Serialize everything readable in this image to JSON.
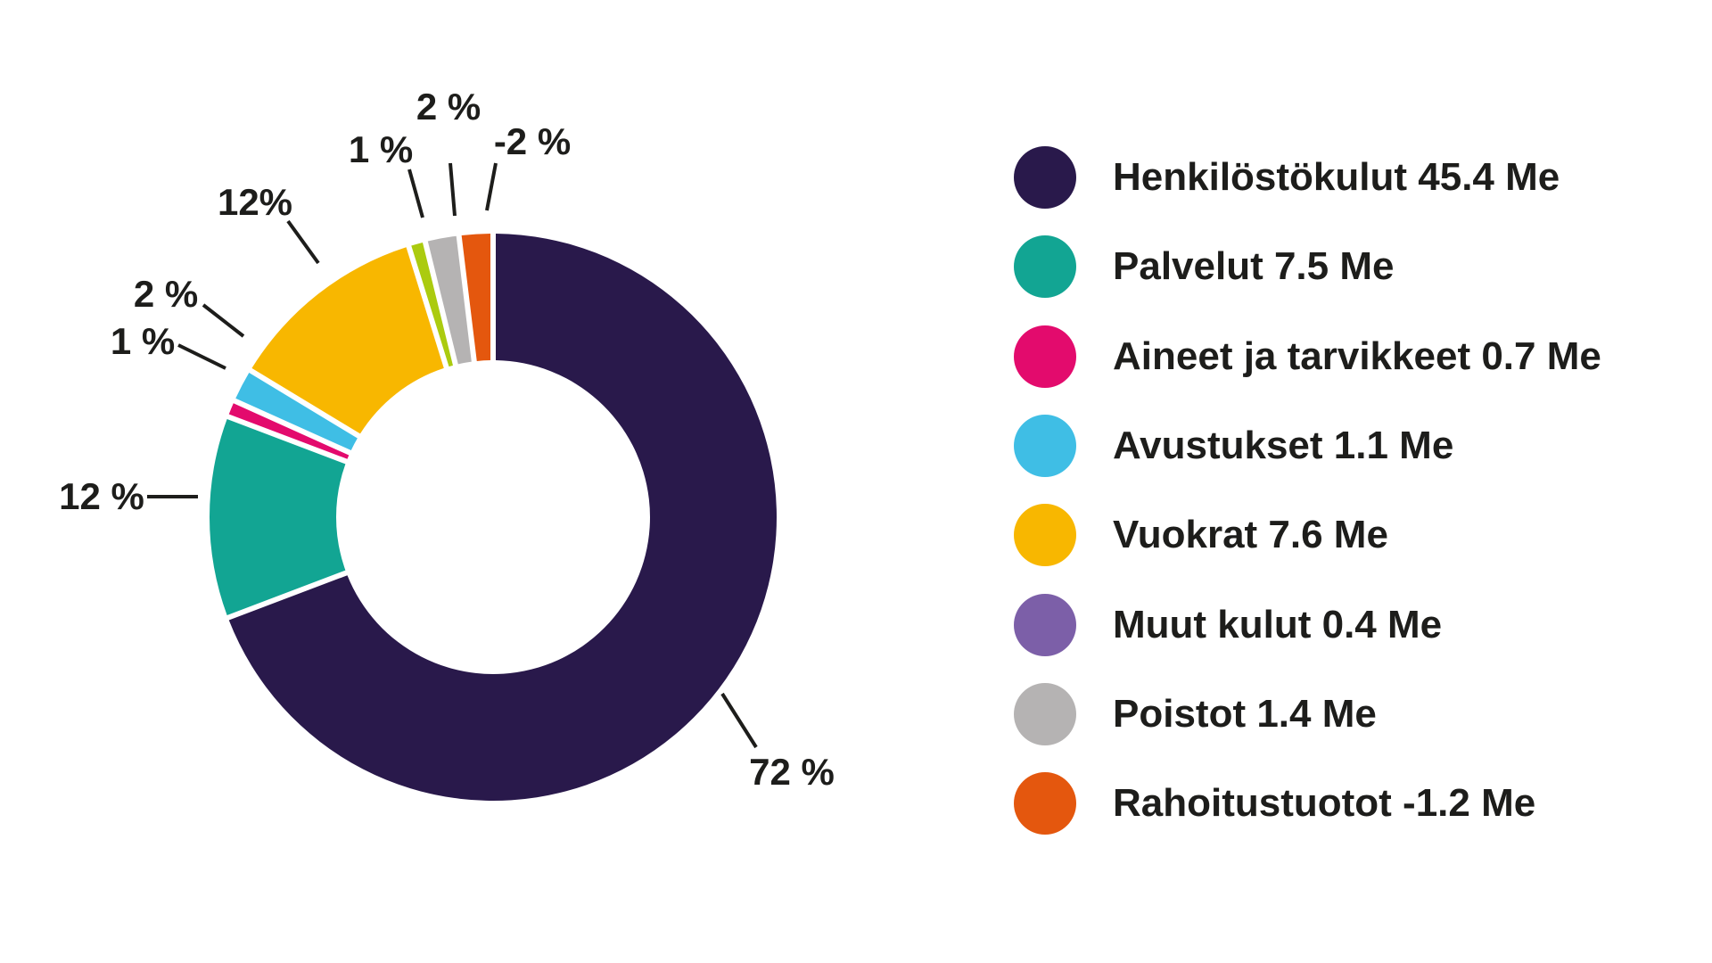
{
  "background": "#FFFFFF",
  "text_color": "#1D1D1B",
  "chart_data": {
    "type": "pie",
    "donut": true,
    "title": "",
    "units": "Me",
    "start_angle_deg": 0,
    "direction": "clockwise",
    "legend_position": "right",
    "slices": [
      {
        "name": "Henkilöstökulut",
        "value_me": 45.4,
        "percent": 72,
        "percent_label": "72 %",
        "color": "#29194B"
      },
      {
        "name": "Palvelut",
        "value_me": 7.5,
        "percent": 12,
        "percent_label": "12 %",
        "color": "#12A593"
      },
      {
        "name": "Aineet ja tarvikkeet",
        "value_me": 0.7,
        "percent": 1,
        "percent_label": "1 %",
        "color": "#E30B6D"
      },
      {
        "name": "Avustukset",
        "value_me": 1.1,
        "percent": 2,
        "percent_label": "2 %",
        "color": "#3FBEE5"
      },
      {
        "name": "Vuokrat",
        "value_me": 7.6,
        "percent": 12,
        "percent_label": "12%",
        "color": "#F8B700"
      },
      {
        "name": "Muut kulut",
        "value_me": 0.4,
        "percent": 1,
        "percent_label": "1 %",
        "color": "#ABCB0F"
      },
      {
        "name": "Poistot",
        "value_me": 1.4,
        "percent": 2,
        "percent_label": "2 %",
        "color": "#B5B3B3"
      },
      {
        "name": "Rahoitustuotot",
        "value_me": -1.2,
        "percent": -2,
        "percent_label": "-2 %",
        "color": "#E4570E"
      }
    ],
    "legend": [
      {
        "label": "Henkilöstökulut 45.4 Me",
        "color": "#29194B"
      },
      {
        "label": "Palvelut 7.5 Me",
        "color": "#12A593"
      },
      {
        "label": "Aineet ja tarvikkeet 0.7 Me",
        "color": "#E30B6D"
      },
      {
        "label": "Avustukset 1.1 Me",
        "color": "#3FBEE5"
      },
      {
        "label": "Vuokrat 7.6 Me",
        "color": "#F8B700"
      },
      {
        "label": "Muut kulut 0.4 Me",
        "color": "#7C5FA8"
      },
      {
        "label": "Poistot 1.4 Me",
        "color": "#B5B3B3"
      },
      {
        "label": "Rahoitustuotot -1.2 Me",
        "color": "#E4570E"
      }
    ]
  }
}
